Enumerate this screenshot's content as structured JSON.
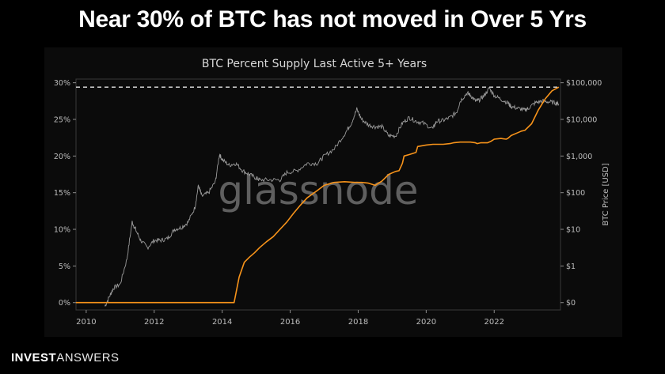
{
  "header": {
    "headline": "Near 30% of BTC has not moved in Over 5 Yrs"
  },
  "watermark": "glassnode",
  "brand": {
    "part1": "INVEST",
    "part2": "ANSWERS"
  },
  "colors": {
    "supply": "#f7931a",
    "price": "#9a9a9a",
    "background": "#0b0b0b",
    "axis": "#bdbdbd"
  },
  "chart_data": {
    "type": "line",
    "title": "BTC Percent Supply Last Active 5+ Years",
    "xlabel": "",
    "ylabel": "",
    "y2label": "BTC Price [USD]",
    "xlim": [
      2009.7,
      2023.95
    ],
    "ylim": [
      -1,
      30.5
    ],
    "y2lim_log10": [
      -1.2,
      5.1
    ],
    "x_ticks": [
      2010,
      2012,
      2014,
      2016,
      2018,
      2020,
      2022
    ],
    "x_tick_labels": [
      "2010",
      "2012",
      "2014",
      "2016",
      "2018",
      "2020",
      "2022"
    ],
    "y_ticks": [
      0,
      5,
      10,
      15,
      20,
      25,
      30
    ],
    "y_tick_labels": [
      "0%",
      "5%",
      "10%",
      "15%",
      "20%",
      "25%",
      "30%"
    ],
    "y2_ticks_log10": [
      0,
      1,
      2,
      3,
      4,
      5
    ],
    "y2_tick_labels": [
      "$0",
      "$1",
      "$10",
      "$100",
      "$1,000",
      "$10,000",
      "$100,000"
    ],
    "y2_tick_positions_log10": [
      -1,
      0,
      1,
      2,
      3,
      4,
      5
    ],
    "reference_line": {
      "y": 29.4,
      "style": "dashed"
    },
    "grid": false,
    "series": [
      {
        "key": "supply",
        "axis": "left",
        "x": [
          2009.7,
          2014.35,
          2014.5,
          2014.65,
          2014.8,
          2014.95,
          2015.1,
          2015.3,
          2015.5,
          2015.7,
          2015.9,
          2016.1,
          2016.3,
          2016.5,
          2016.8,
          2017.0,
          2017.3,
          2017.6,
          2017.9,
          2018.1,
          2018.3,
          2018.5,
          2018.7,
          2018.9,
          2019.1,
          2019.2,
          2019.3,
          2019.35,
          2019.5,
          2019.7,
          2019.75,
          2020.0,
          2020.2,
          2020.5,
          2020.7,
          2020.8,
          2021.0,
          2021.3,
          2021.45,
          2021.5,
          2021.6,
          2021.8,
          2021.9,
          2022.0,
          2022.2,
          2022.35,
          2022.4,
          2022.5,
          2022.7,
          2022.8,
          2022.9,
          2023.1,
          2023.3,
          2023.5,
          2023.7,
          2023.9
        ],
        "y": [
          0,
          0,
          3.5,
          5.5,
          6.2,
          6.8,
          7.5,
          8.3,
          9.0,
          10.0,
          11.0,
          12.2,
          13.3,
          14.3,
          15.3,
          16.0,
          16.4,
          16.5,
          16.4,
          16.4,
          16.3,
          16.0,
          16.6,
          17.5,
          17.9,
          18.0,
          19.0,
          20.0,
          20.2,
          20.5,
          21.3,
          21.5,
          21.6,
          21.6,
          21.7,
          21.8,
          21.9,
          21.9,
          21.8,
          21.7,
          21.8,
          21.8,
          22.0,
          22.3,
          22.4,
          22.3,
          22.4,
          22.8,
          23.2,
          23.4,
          23.5,
          24.4,
          26.3,
          27.8,
          28.9,
          29.4
        ]
      },
      {
        "key": "price",
        "axis": "right",
        "x": [
          2010.55,
          2010.7,
          2010.8,
          2011.0,
          2011.2,
          2011.35,
          2011.45,
          2011.6,
          2011.8,
          2012.0,
          2012.2,
          2012.4,
          2012.6,
          2012.8,
          2013.0,
          2013.2,
          2013.3,
          2013.4,
          2013.6,
          2013.8,
          2013.92,
          2014.0,
          2014.2,
          2014.4,
          2014.6,
          2014.8,
          2015.0,
          2015.1,
          2015.4,
          2015.7,
          2015.9,
          2016.2,
          2016.5,
          2016.8,
          2017.0,
          2017.3,
          2017.6,
          2017.8,
          2017.96,
          2018.1,
          2018.3,
          2018.5,
          2018.7,
          2018.9,
          2019.1,
          2019.3,
          2019.5,
          2019.7,
          2019.9,
          2020.2,
          2020.3,
          2020.5,
          2020.7,
          2020.9,
          2021.0,
          2021.2,
          2021.3,
          2021.45,
          2021.55,
          2021.7,
          2021.86,
          2022.0,
          2022.2,
          2022.4,
          2022.5,
          2022.7,
          2022.9,
          2023.0,
          2023.2,
          2023.4,
          2023.6,
          2023.8,
          2023.9
        ],
        "y_log10": [
          -1.1,
          -0.8,
          -0.6,
          -0.5,
          0.2,
          1.2,
          1.0,
          0.7,
          0.5,
          0.7,
          0.7,
          0.75,
          1.0,
          1.05,
          1.2,
          1.6,
          2.2,
          1.9,
          2.0,
          2.3,
          3.05,
          2.9,
          2.75,
          2.8,
          2.6,
          2.5,
          2.4,
          2.35,
          2.35,
          2.35,
          2.55,
          2.6,
          2.8,
          2.8,
          3.0,
          3.2,
          3.6,
          3.9,
          4.28,
          4.0,
          3.85,
          3.8,
          3.8,
          3.55,
          3.55,
          3.9,
          4.05,
          3.95,
          3.9,
          3.75,
          3.95,
          3.97,
          4.05,
          4.2,
          4.5,
          4.72,
          4.66,
          4.5,
          4.52,
          4.65,
          4.85,
          4.65,
          4.55,
          4.45,
          4.35,
          4.3,
          4.25,
          4.3,
          4.45,
          4.5,
          4.48,
          4.45,
          4.42
        ]
      }
    ]
  }
}
